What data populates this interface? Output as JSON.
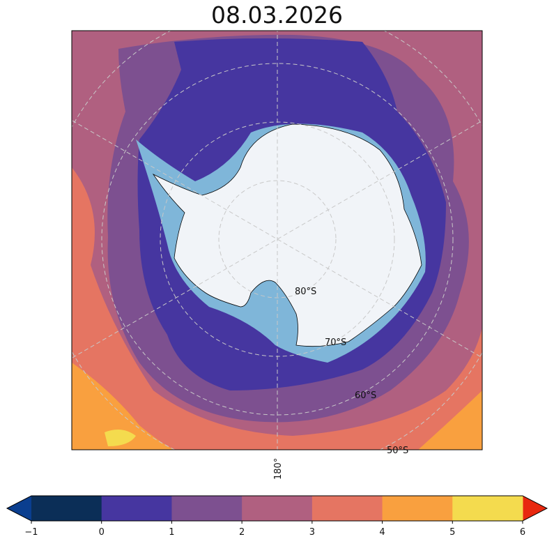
{
  "title": "08.03.2026",
  "map": {
    "projection": "south-polar-stereographic",
    "latitude_labels": [
      "80°S",
      "70°S",
      "60°S",
      "50°S"
    ],
    "longitude_labels": [
      "180°"
    ],
    "land_color": "#f1f4f8",
    "sea_ice_color": "#7fb6d9"
  },
  "colorbar": {
    "ticks": [
      "−1",
      "0",
      "1",
      "2",
      "3",
      "4",
      "5",
      "6"
    ],
    "levels": [
      -1,
      0,
      1,
      2,
      3,
      4,
      5,
      6
    ],
    "colors": [
      "#0b2e57",
      "#4636a0",
      "#7d5090",
      "#b06080",
      "#e57562",
      "#f9a03f",
      "#f4db4e"
    ],
    "under_color": "#0a3e8f",
    "over_color": "#e8280f",
    "extend": "both"
  }
}
